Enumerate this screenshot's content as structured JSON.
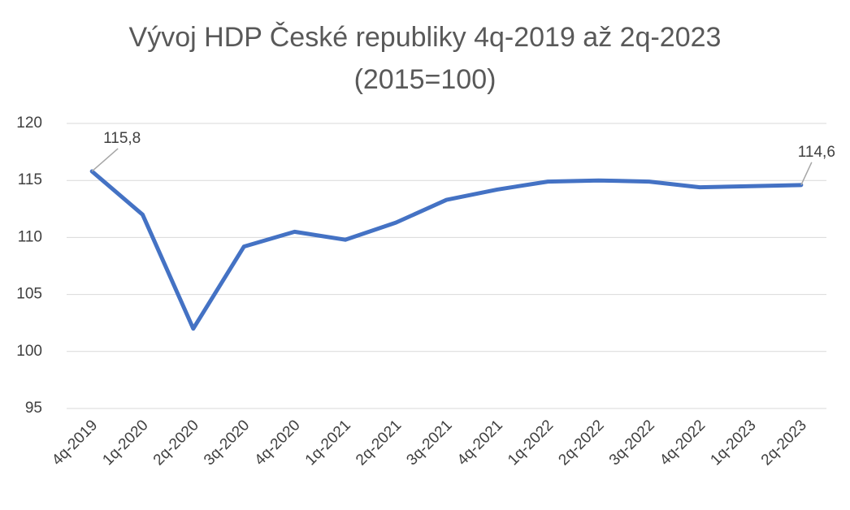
{
  "chart_data": {
    "type": "line",
    "title": "Vývoj HDP České republiky 4q-2019 až 2q-2023",
    "subtitle": "(2015=100)",
    "categories": [
      "4q-2019",
      "1q-2020",
      "2q-2020",
      "3q-2020",
      "4q-2020",
      "1q-2021",
      "2q-2021",
      "3q-2021",
      "4q-2021",
      "1q-2022",
      "2q-2022",
      "3q-2022",
      "4q-2022",
      "1q-2023",
      "2q-2023"
    ],
    "values": [
      115.8,
      112.0,
      102.0,
      109.2,
      110.5,
      109.8,
      111.3,
      113.3,
      114.2,
      114.9,
      115.0,
      114.9,
      114.4,
      114.5,
      114.6
    ],
    "value_labels": [
      "115,8",
      null,
      null,
      null,
      null,
      null,
      null,
      null,
      null,
      null,
      null,
      null,
      null,
      null,
      "114,6"
    ],
    "color": "#4472c4",
    "ylim": [
      95,
      120
    ],
    "yticks": [
      95,
      100,
      105,
      110,
      115,
      120
    ],
    "grid": true
  }
}
